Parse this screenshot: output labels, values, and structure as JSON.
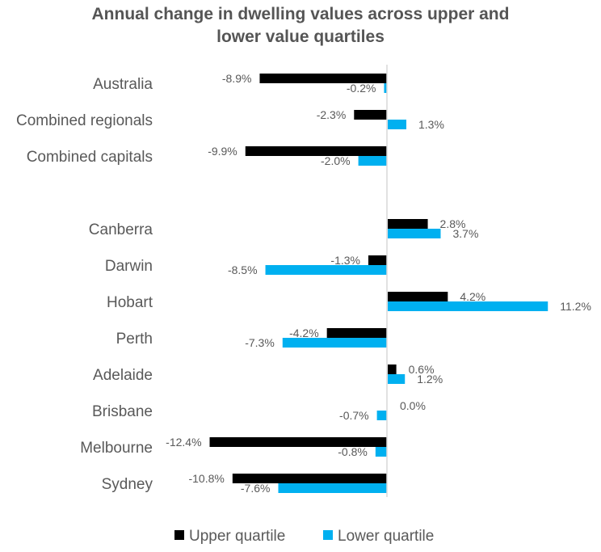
{
  "chart_data": {
    "type": "bar",
    "orientation": "horizontal",
    "title_lines": [
      "Annual change in dwelling values across upper and",
      "lower value quartiles"
    ],
    "categories": [
      "Australia",
      "Combined regionals",
      "Combined capitals",
      "Canberra",
      "Darwin",
      "Hobart",
      "Perth",
      "Adelaide",
      "Brisbane",
      "Melbourne",
      "Sydney"
    ],
    "series": [
      {
        "name": "Upper quartile",
        "color": "#000000",
        "values": [
          -8.9,
          -2.3,
          -9.9,
          2.8,
          -1.3,
          4.2,
          -4.2,
          0.6,
          0.0,
          -12.4,
          -10.8
        ],
        "labels": [
          "-8.9%",
          "-2.3%",
          "-9.9%",
          "2.8%",
          "-1.3%",
          "4.2%",
          "-4.2%",
          "0.6%",
          "0.0%",
          "-12.4%",
          "-10.8%"
        ]
      },
      {
        "name": "Lower quartile",
        "color": "#00B0F0",
        "values": [
          -0.2,
          1.3,
          -2.0,
          3.7,
          -8.5,
          11.2,
          -7.3,
          1.2,
          -0.7,
          -0.8,
          -7.6
        ],
        "labels": [
          "-0.2%",
          "1.3%",
          "-2.0%",
          "3.7%",
          "-8.5%",
          "11.2%",
          "-7.3%",
          "1.2%",
          "-0.7%",
          "-0.8%",
          "-7.6%"
        ]
      }
    ],
    "legend": {
      "position": "bottom",
      "entries": [
        "Upper quartile",
        "Lower quartile"
      ]
    },
    "axis_color": "#D9D9D9",
    "grid": false
  }
}
